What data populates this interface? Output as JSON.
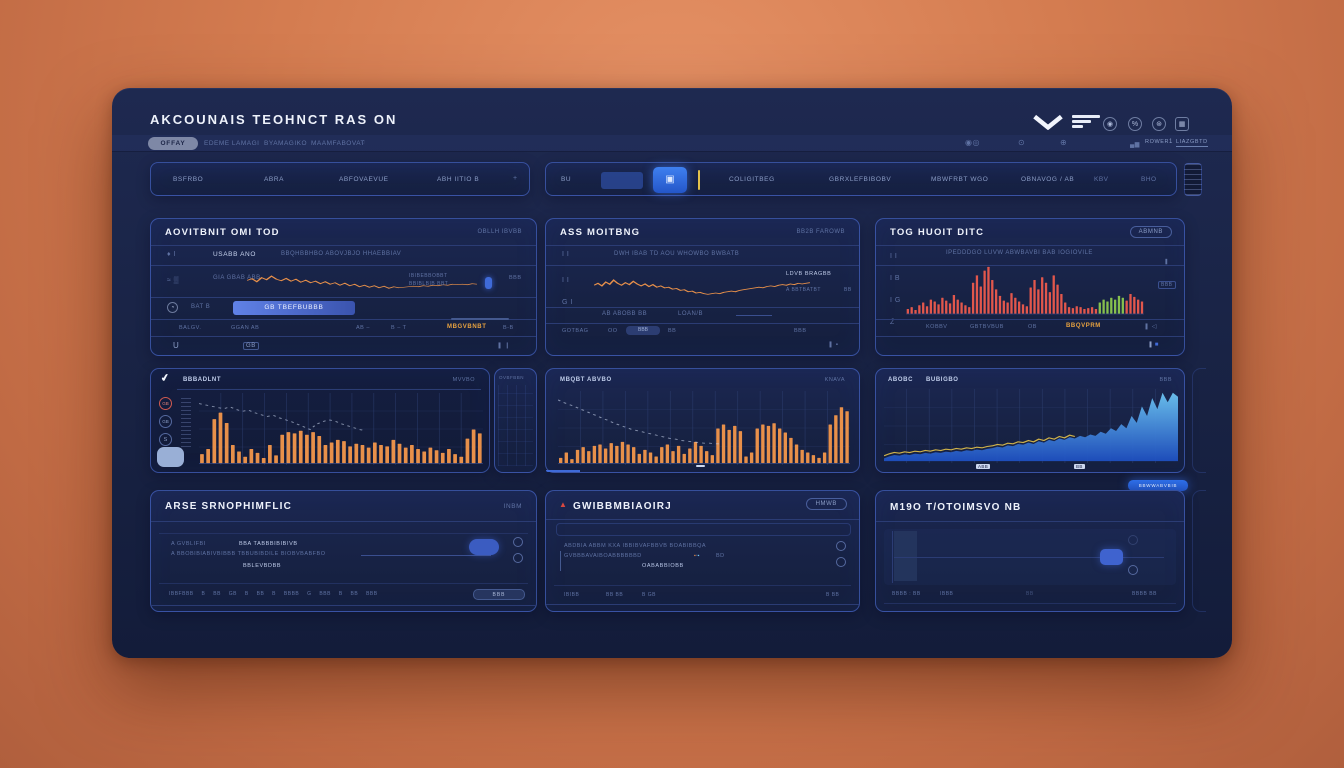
{
  "header": {
    "title": "AKCOUNAIS TEOHNCT RAS ON",
    "icons": [
      {
        "name": "link-icon",
        "glyph": "◉"
      },
      {
        "name": "percent-icon",
        "glyph": "%"
      },
      {
        "name": "settings-icon",
        "glyph": "⊛"
      },
      {
        "name": "stats-icon",
        "glyph": "▦"
      }
    ]
  },
  "nav": {
    "pill": "OFFAY",
    "items": [
      "EDEME LAMAGI",
      "BYAMAGIKO",
      "MAAMFABOVAT"
    ],
    "right": {
      "power": "ROWER",
      "count": "1",
      "link": "LIAZGBTD"
    }
  },
  "toolbar": {
    "tabs": [
      "BSFRBO",
      "ABRA",
      "ABFOVAEVUE",
      "ABH IITIO B"
    ],
    "plus": "+",
    "bu": "BU",
    "items": [
      "COLIGITBEG",
      "GBRXLEFBIBOBV",
      "MBWFRBT WGO",
      "OBNAVOG / AB",
      "KBV",
      "BHO"
    ]
  },
  "panel_activity": {
    "title": "AOVITBNIT OMI TOD",
    "badge": "OBLLH IBVBB",
    "row1_label": "USABB ANO",
    "row1_text": "BBQHBBHBO ABOVJBJO HHAEBBIAV",
    "row2_label": "GIA GBAB ABB",
    "row2_note1": "IBIBEBBOBBT",
    "row2_note2": "BBIBLBIB BBT",
    "row2_tag": "BBB",
    "row3_label": "BAT B",
    "row3_pill": "GB TBEFBUBBB",
    "row4_a": "BALGV.",
    "row4_b": "GGAN AB",
    "row4_c": "AB –",
    "row4_d": "B – T",
    "row4_link": "MBGVBNBT",
    "row4_right": "B-B",
    "footer_u": "U",
    "footer_gb": "GB"
  },
  "panel_monitoring": {
    "title": "ASS MOITBNG",
    "badge": "BB2B FAROWB",
    "row1_text": "DWH IBAB TD AOU WHOWBO BWBATB",
    "side1": "LDVB BRAGBB",
    "side2": "A BBTBATBT",
    "side2_val": "BB",
    "row3_a": "AB ABOBB BB",
    "row3_b": "LOAN/B",
    "row4_a": "GOTBAG",
    "row4_b": "OO",
    "row4_pill": "BBB",
    "row4_c": "BB",
    "row4_right": "BBB"
  },
  "panel_tophold": {
    "title": "TOG HUOIT DITC",
    "badge": "ABMNB",
    "row1_text": "IPEDDDGO LUVW ABWBAVBI BAB IOGIOVILE",
    "legend_1": "KOBBV",
    "legend_2": "GBTBVBUB",
    "legend_3": "OB",
    "legend_link": "BBQVPRM",
    "tag": "BBB"
  },
  "panel_headline": {
    "title": "BBBADLNT",
    "badge": "MVVBO",
    "sub": "OVBFBBN",
    "rail_1": "GB",
    "rail_2": "GB",
    "rail_3": "S"
  },
  "panel_market": {
    "title": "MBQBT ABVBO",
    "badge": "KNAVA"
  },
  "panel_energy": {
    "title_a": "ABOBC",
    "title_b": "BUBIGBO",
    "badge": "BBB",
    "tick1": "ABB",
    "tick2": "BB"
  },
  "panel_demo": {
    "title": "ARSE SRNOPHIMFLIC",
    "badge": "INBM",
    "line1_a": "A GVBLIFBI",
    "line1_b": "BBA TABBBIBIBIVB",
    "line2": "A BBOBIBIABIVBIBBB TBBUBIBDILE BIOBVBABFBO",
    "line3": "BBLEVBDBB",
    "filters": "IBBFBBB  B BB  GB  B  BB  B  BBBB  G  BBB  B  BB  BBB",
    "pill": "BBB"
  },
  "panel_comm": {
    "title": "GWIBBMBIAOIRJ",
    "badge": "HMWB",
    "line1": "ABDBIA ABBM KXA IBBIBVAFBBVB BOABIBBQA",
    "line2": "GVBBBAVAIBOABBBBBBD",
    "line2_b": "BD",
    "line3": "OABABBIOBB",
    "footer_1": "IBIBB",
    "footer_2": "BB BB",
    "footer_3": "B GB",
    "footer_right": "B BB"
  },
  "panel_mino": {
    "button": "BBWWABVBIB",
    "title": "M19O T/OTOIMSVO NB",
    "footer_a": "BBBB : BB",
    "footer_b": "IBBB",
    "footer_c": "BB",
    "footer_right": "BBBB BB"
  },
  "colors": {
    "orange_accent": "#e8904a",
    "coral": "#e2574c",
    "green": "#86c04e",
    "blue_area": "#58b8f0",
    "blue_pill": "#2f6fe8",
    "yellow": "#e3c24b"
  },
  "chart_data": {
    "panel_a_line": {
      "type": "line",
      "color": "#e8904a",
      "width": 0.9,
      "values": [
        55,
        62,
        50,
        66,
        58,
        72,
        60,
        54,
        63,
        52,
        60,
        48,
        56,
        46,
        52,
        42,
        50,
        40,
        46,
        36,
        44,
        34,
        40,
        30,
        36,
        28,
        34,
        26,
        32,
        24,
        30,
        26,
        28,
        30,
        32,
        30,
        34,
        32,
        36,
        34,
        38,
        36,
        40,
        38,
        40,
        38,
        42,
        40
      ]
    },
    "panel_b_line": {
      "type": "line",
      "color": "#e8904a",
      "width": 0.9,
      "values": [
        52,
        58,
        50,
        62,
        55,
        68,
        58,
        52,
        60,
        54,
        64,
        56,
        50,
        56,
        48,
        54,
        46,
        50,
        44,
        46,
        40,
        42,
        36,
        38,
        32,
        34,
        28,
        30,
        26,
        24,
        26,
        28,
        26,
        30,
        32,
        34,
        32,
        36,
        38,
        40,
        42,
        44,
        46,
        44,
        48,
        50,
        48,
        52,
        54,
        52,
        56,
        54,
        58,
        56,
        58,
        60
      ]
    },
    "panel_c_bars": {
      "type": "bar",
      "color": "#e2574c",
      "highlight": {
        "from": 50,
        "to": 56,
        "color": "#86c04e"
      },
      "values": [
        10,
        14,
        8,
        18,
        24,
        16,
        30,
        26,
        20,
        34,
        28,
        22,
        40,
        30,
        24,
        18,
        14,
        66,
        82,
        58,
        92,
        100,
        72,
        52,
        38,
        28,
        24,
        44,
        34,
        26,
        20,
        16,
        56,
        72,
        52,
        78,
        66,
        46,
        82,
        62,
        42,
        24,
        14,
        12,
        16,
        14,
        10,
        12,
        14,
        10,
        24,
        30,
        26,
        34,
        30,
        38,
        34,
        28,
        42,
        36,
        30,
        26
      ]
    },
    "panel_d_bars": {
      "type": "bar",
      "color": "#e8904a",
      "grid": true,
      "values": [
        14,
        22,
        68,
        78,
        62,
        28,
        18,
        10,
        22,
        16,
        8,
        28,
        12,
        44,
        48,
        46,
        50,
        44,
        48,
        42,
        28,
        32,
        36,
        34,
        26,
        30,
        28,
        24,
        32,
        28,
        26,
        36,
        30,
        24,
        28,
        22,
        18,
        24,
        20,
        16,
        22,
        14,
        10,
        38,
        52,
        46
      ],
      "overlay": {
        "color": "#cdd8f0",
        "dash": "1,1.4",
        "width": 0.5,
        "opacity": 0.6,
        "values": [
          92,
          90,
          88,
          86,
          84,
          87,
          83,
          80,
          82,
          78,
          75,
          72,
          74,
          70,
          67,
          64,
          60,
          56,
          52,
          60,
          64,
          67,
          65,
          61,
          58,
          55,
          52,
          50
        ]
      }
    },
    "panel_e_bars": {
      "type": "bar",
      "color": "#e8904a",
      "grid": true,
      "values": [
        8,
        16,
        6,
        20,
        24,
        18,
        26,
        28,
        22,
        30,
        26,
        32,
        28,
        24,
        14,
        20,
        16,
        10,
        24,
        28,
        18,
        26,
        14,
        22,
        32,
        26,
        18,
        12,
        52,
        58,
        50,
        56,
        48,
        10,
        16,
        52,
        58,
        56,
        60,
        52,
        46,
        38,
        28,
        20,
        16,
        12,
        8,
        16,
        58,
        72,
        84,
        78
      ],
      "overlay": {
        "color": "#cdd8f0",
        "dash": "1,1.4",
        "width": 0.5,
        "opacity": 0.6,
        "values": [
          95,
          91,
          88,
          85,
          81,
          78,
          74,
          71,
          67,
          64,
          60,
          57,
          54,
          51,
          49,
          47,
          45,
          43,
          41,
          39,
          37,
          36,
          34,
          33,
          32,
          31,
          30,
          30,
          29,
          29
        ]
      }
    },
    "panel_f_area": {
      "type": "area",
      "color": "#6cc4f2",
      "color2": "#1e4fc0",
      "grid": true,
      "values": [
        4,
        7,
        9,
        8,
        10,
        9,
        11,
        10,
        12,
        11,
        13,
        12,
        14,
        13,
        15,
        14,
        16,
        15,
        17,
        16,
        18,
        19,
        21,
        20,
        23,
        22,
        25,
        24,
        27,
        25,
        29,
        27,
        31,
        29,
        33,
        31,
        35,
        33,
        37,
        35,
        39,
        37,
        43,
        40,
        48,
        44,
        54,
        48,
        66,
        56,
        80,
        66,
        92,
        76,
        100,
        86,
        100,
        94
      ],
      "overlay": {
        "color": "#e3c24b",
        "width": 0.6,
        "opacity": 0.9,
        "values": [
          8,
          11,
          13,
          12,
          14,
          13,
          15,
          14,
          16,
          15,
          17,
          16,
          18,
          17,
          19,
          18,
          20,
          19,
          21,
          20,
          22,
          23,
          25,
          24,
          27,
          26,
          29,
          28,
          31,
          29,
          33,
          31,
          35,
          33,
          37,
          35,
          39,
          37
        ]
      }
    }
  }
}
